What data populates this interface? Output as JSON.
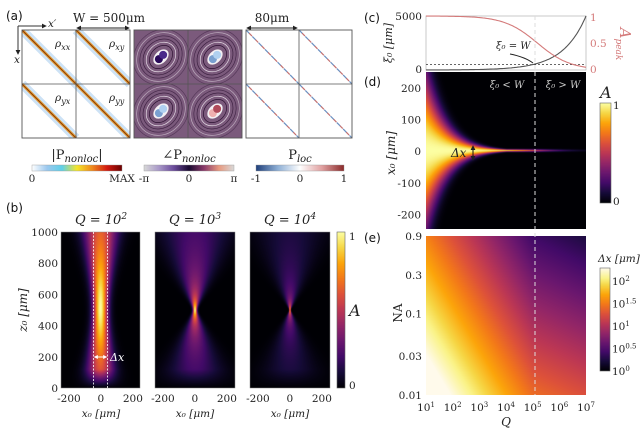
{
  "figure": {
    "panel_labels": {
      "a": "(a)",
      "b": "(b)",
      "c": "(c)",
      "d": "(d)",
      "e": "(e)"
    },
    "panel_a": {
      "width_label": "W = 500μm",
      "scale_label": "80μm",
      "axis_x_prime": "x′",
      "axis_x": "x",
      "matrix_labels": [
        {
          "base": "ρ",
          "sub": "xx"
        },
        {
          "base": "ρ",
          "sub": "xy"
        },
        {
          "base": "ρ",
          "sub": "yx"
        },
        {
          "base": "ρ",
          "sub": "yy"
        }
      ],
      "colorbars": [
        {
          "title_base": "|P",
          "title_sub": "nonloc",
          "title_end": "|",
          "ticks": [
            "0",
            "MAX"
          ],
          "colors": [
            "#ffffff",
            "#9cc8ee",
            "#5fd0e8",
            "#f5e52a",
            "#f08a1c",
            "#d21a10",
            "#6a0000"
          ]
        },
        {
          "title_base": "∠P",
          "title_sub": "nonloc",
          "title_end": "",
          "ticks": [
            "-π",
            "0",
            "π"
          ],
          "colors": [
            "#d8d8d8",
            "#a898c8",
            "#6a4a9a",
            "#1a0a30",
            "#8a3a6a",
            "#e89a80",
            "#d8d8d8"
          ]
        },
        {
          "title_base": "P",
          "title_sub": "loc",
          "title_end": "",
          "ticks": [
            "-1",
            "0",
            "1"
          ],
          "colors": [
            "#1f3f7a",
            "#8fb0d6",
            "#ffffff",
            "#e0a0a0",
            "#8a2a2a"
          ]
        }
      ]
    }
  },
  "chart_data": [
    {
      "type": "heatmap",
      "panel": "(b)",
      "subplots": [
        {
          "title_base": "Q = 10",
          "title_exp": "2",
          "Q": 100
        },
        {
          "title_base": "Q = 10",
          "title_exp": "3",
          "Q": 1000
        },
        {
          "title_base": "Q = 10",
          "title_exp": "4",
          "Q": 10000
        }
      ],
      "xlabel": "x₀ [μm]",
      "ylabel": "z₀ [μm]",
      "xticks": [
        "-200",
        "0",
        "200"
      ],
      "yticks": [
        "1000",
        "800",
        "600",
        "400",
        "200",
        "0"
      ],
      "xlim": [
        -250,
        250
      ],
      "ylim": [
        0,
        1000
      ],
      "focus_z": 500,
      "annotation": "Δx",
      "colormap": "inferno",
      "colorbar": {
        "label": "A",
        "ticks": [
          "1",
          "0"
        ],
        "range": [
          0,
          1
        ]
      }
    },
    {
      "type": "line",
      "panel": "(c)",
      "x_scale": "log",
      "x": [
        10,
        100,
        1000,
        10000,
        100000,
        1000000,
        10000000
      ],
      "series": [
        {
          "name": "ξ₀ [μm]",
          "axis": "left",
          "color": "#555555",
          "values": [
            5,
            16,
            50,
            158,
            500,
            1581,
            5000
          ]
        },
        {
          "name": "A peak",
          "axis": "right",
          "color": "#d47a7a",
          "values": [
            1.0,
            0.99,
            0.97,
            0.88,
            0.58,
            0.28,
            0.1
          ]
        }
      ],
      "ylabel": "ξ₀ [μm]",
      "y2label_base": "A",
      "y2label_sub": "peak",
      "ylim": [
        0,
        5000
      ],
      "y2lim": [
        0,
        1
      ],
      "yticks": [
        "5000",
        "0"
      ],
      "y2ticks": [
        "1",
        "0.5",
        "0"
      ],
      "reference_W": 500,
      "annotation": "ξ₀ = W"
    },
    {
      "type": "heatmap",
      "panel": "(d)",
      "x_scale": "log",
      "xlim": [
        10,
        10000000
      ],
      "ylim": [
        -250,
        250
      ],
      "ylabel": "x₀ [μm]",
      "yticks": [
        "200",
        "100",
        "0",
        "-100",
        "-200"
      ],
      "annotations": [
        "ξ₀ < W",
        "ξ₀ > W",
        "Δx"
      ],
      "colormap": "inferno",
      "colorbar": {
        "label": "A",
        "ticks": [
          "1",
          "0"
        ],
        "range": [
          0,
          1
        ]
      }
    },
    {
      "type": "heatmap",
      "panel": "(e)",
      "x_scale": "log",
      "y_scale": "log",
      "xlabel": "Q",
      "xticks": [
        {
          "base": "10",
          "exp": "1"
        },
        {
          "base": "10",
          "exp": "2"
        },
        {
          "base": "10",
          "exp": "3"
        },
        {
          "base": "10",
          "exp": "4"
        },
        {
          "base": "10",
          "exp": "5"
        },
        {
          "base": "10",
          "exp": "6"
        },
        {
          "base": "10",
          "exp": "7"
        }
      ],
      "ylabel": "NA",
      "yticks": [
        "0.9",
        "0.3",
        "0.1",
        "0.03",
        "0.01"
      ],
      "xlim": [
        10,
        10000000
      ],
      "ylim": [
        0.01,
        0.9
      ],
      "colormap": "inferno",
      "colorbar": {
        "label": "Δx [μm]",
        "scale": "log",
        "ticks": [
          {
            "base": "10",
            "exp": "2"
          },
          {
            "base": "10",
            "exp": "1.5"
          },
          {
            "base": "10",
            "exp": "1"
          },
          {
            "base": "10",
            "exp": "0.5"
          },
          {
            "base": "10",
            "exp": "0"
          }
        ],
        "range": [
          1,
          160
        ]
      }
    }
  ]
}
